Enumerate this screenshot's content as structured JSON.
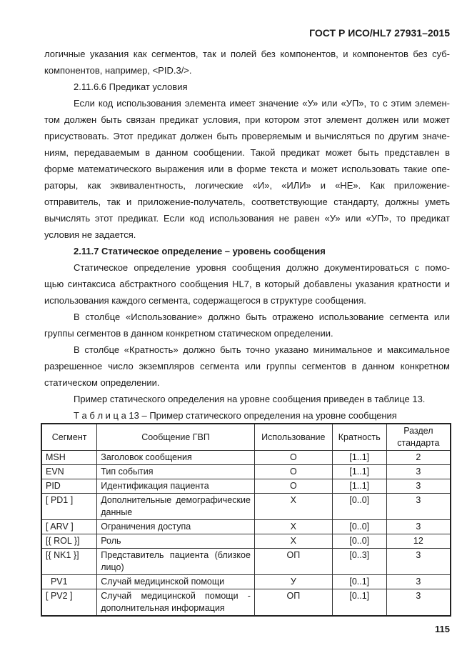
{
  "header": {
    "doc_id": "ГОСТ Р ИСО/HL7 27931–2015"
  },
  "lines": [
    {
      "text": "логичные указания как сегментов, так и полей без компонентов, и компонентов без суб-"
    },
    {
      "text": "компонентов, например, <PID.3/>.",
      "last": true
    },
    {
      "text": "2.11.6.6 Предикат условия",
      "indent": true,
      "last": true
    },
    {
      "text": "Если код использования элемента имеет значение «У» или «УП», то с этим элемен-",
      "indent": true
    },
    {
      "text": "том должен быть связан предикат условия, при котором этот элемент должен или может"
    },
    {
      "text": "присуствовать. Этот предикат должен быть проверяемым и вычисляться по другим значе-"
    },
    {
      "text": "ниям, передаваемым в данном сообщении. Такой предикат может быть представлен в"
    },
    {
      "text": "форме математического выражения или в форме текста и может использовать такие опе-"
    },
    {
      "text": "раторы, как эквивалентность, логические «И», «ИЛИ» и «НЕ». Как приложение-"
    },
    {
      "text": "отправитель, так и приложение-получатель, соответствующие стандарту, должны уметь"
    },
    {
      "text": "вычислять этот предикат. Если код использования не равен «У» или «УП», то предикат"
    },
    {
      "text": "условия не задается.",
      "last": true
    },
    {
      "text": "2.11.7 Статическое определение – уровень сообщения",
      "indent": true,
      "last": true,
      "bold": true
    },
    {
      "text": "Статическое определение уровня сообщения должно документироваться с помо-",
      "indent": true
    },
    {
      "text": "щью синтаксиса абстрактного сообщения HL7, в который добавлены указания кратности и"
    },
    {
      "text": "использования каждого сегмента, содержащегося в структуре сообщения.",
      "last": true
    },
    {
      "text": "В столбце «Использование» должно быть отражено использование сегмента или",
      "indent": true
    },
    {
      "text": "группы сегментов в данном конкретном статическом определении.",
      "last": true
    },
    {
      "text": "В столбце «Кратность» должно быть точно указано минимальное и максимальное",
      "indent": true
    },
    {
      "text": "разрешенное число экземпляров сегмента или группы сегментов в данном конкретном"
    },
    {
      "text": "статическом определении.",
      "last": true
    },
    {
      "text": "Пример статического определения на уровне сообщения приведен в таблице 13.",
      "indent": true,
      "last": true
    },
    {
      "text": "Т а б л и ц а  13  –  Пример статического определения на уровне сообщения",
      "indent": true,
      "last": true
    }
  ],
  "table": {
    "headers": [
      "Сегмент",
      "Сообщение ГВП",
      "Использование",
      "Кратность",
      "Раздел стандарта"
    ],
    "rows": [
      [
        "MSH",
        "Заголовок сообщения",
        "О",
        "[1..1]",
        "2"
      ],
      [
        "EVN",
        "Тип события",
        "О",
        "[1..1]",
        "3"
      ],
      [
        "PID",
        "Идентификация пациента",
        "О",
        "[1..1]",
        "3"
      ],
      [
        "[ PD1 ]",
        "Дополнительные демографические данные",
        "Х",
        "[0..0]",
        "3"
      ],
      [
        "[ ARV ]",
        "Ограничения доступа",
        "Х",
        "[0..0]",
        "3"
      ],
      [
        "[{ ROL }]",
        "Роль",
        "Х",
        "[0..0]",
        "12"
      ],
      [
        "[{ NK1 }]",
        "Представитель пациента (близкое лицо)",
        "ОП",
        "[0..3]",
        "3"
      ],
      [
        "  PV1",
        "Случай медицинской помощи",
        "У",
        "[0..1]",
        "3"
      ],
      [
        "[ PV2 ]",
        "Случай медицинской помощи - дополнительная информация",
        "ОП",
        "[0..1]",
        "3"
      ]
    ]
  },
  "page_number": "115"
}
